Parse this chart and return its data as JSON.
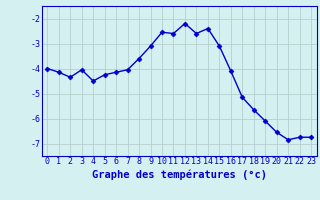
{
  "x": [
    0,
    1,
    2,
    3,
    4,
    5,
    6,
    7,
    8,
    9,
    10,
    11,
    12,
    13,
    14,
    15,
    16,
    17,
    18,
    19,
    20,
    21,
    22,
    23
  ],
  "y": [
    -4.0,
    -4.15,
    -4.35,
    -4.05,
    -4.5,
    -4.25,
    -4.15,
    -4.05,
    -3.6,
    -3.1,
    -2.55,
    -2.6,
    -2.2,
    -2.6,
    -2.4,
    -3.1,
    -4.1,
    -5.15,
    -5.65,
    -6.1,
    -6.55,
    -6.85,
    -6.75,
    -6.75
  ],
  "line_color": "#0000cc",
  "marker": "D",
  "marker_size": 2.5,
  "background_color": "#d4f0f0",
  "grid_color": "#b0c8c8",
  "xlabel": "Graphe des températures (°c)",
  "xlabel_color": "#0000cc",
  "xlabel_fontsize": 7.5,
  "tick_color": "#0000cc",
  "tick_fontsize": 6,
  "ylim": [
    -7.5,
    -1.5
  ],
  "xlim": [
    -0.5,
    23.5
  ],
  "yticks": [
    -7,
    -6,
    -5,
    -4,
    -3,
    -2
  ],
  "xticks": [
    0,
    1,
    2,
    3,
    4,
    5,
    6,
    7,
    8,
    9,
    10,
    11,
    12,
    13,
    14,
    15,
    16,
    17,
    18,
    19,
    20,
    21,
    22,
    23
  ],
  "spine_color": "#0000cc",
  "linewidth": 1.0
}
